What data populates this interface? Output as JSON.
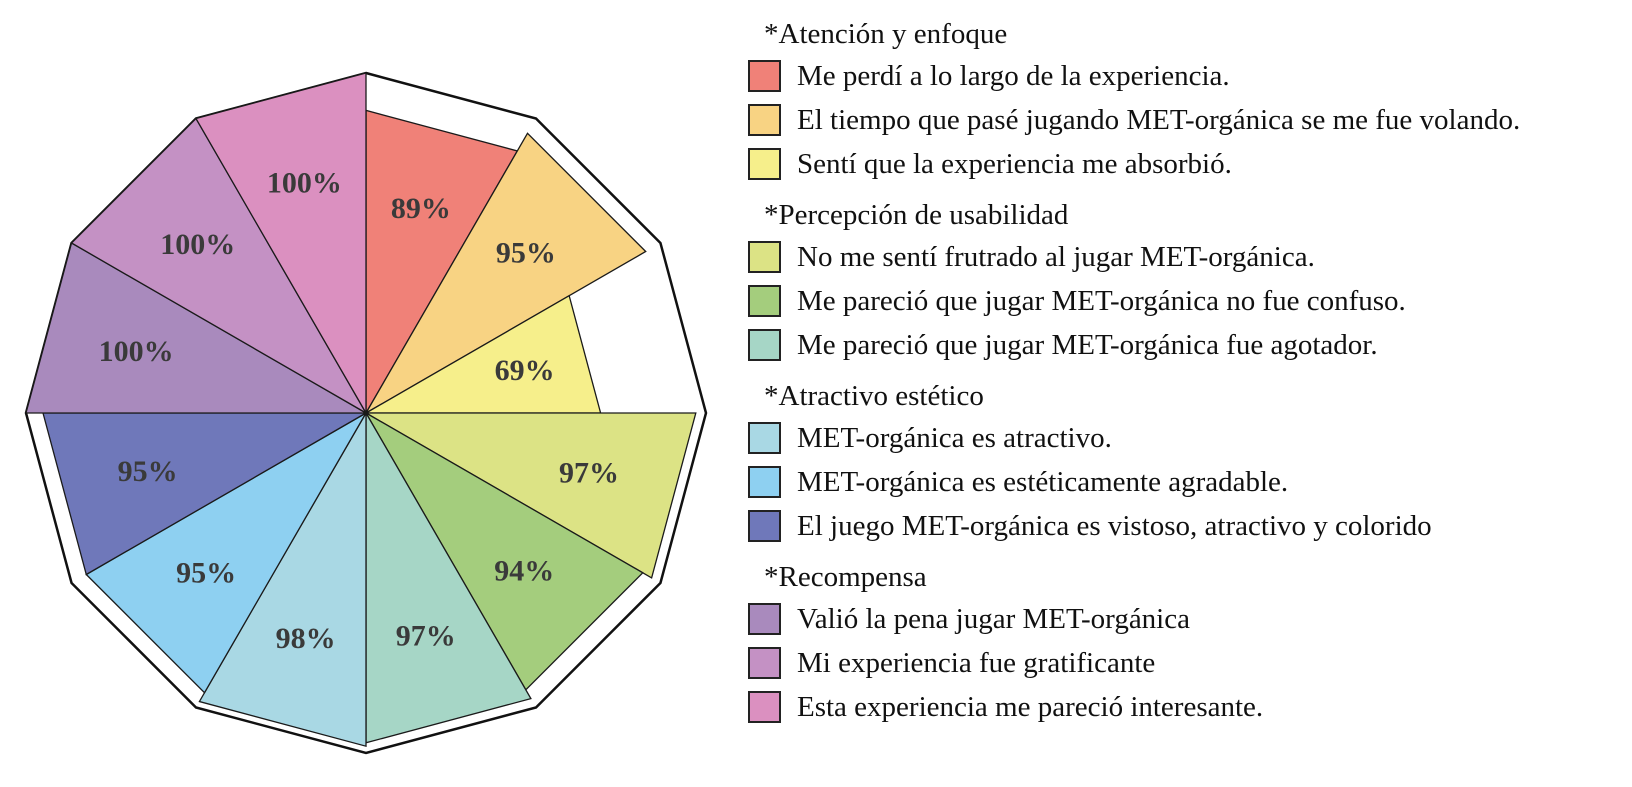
{
  "chart_data": {
    "type": "polar-area",
    "max_value": 100,
    "slices": [
      {
        "value": 89,
        "label": "89%",
        "color": "#f08178"
      },
      {
        "value": 95,
        "label": "95%",
        "color": "#f8d383"
      },
      {
        "value": 69,
        "label": "69%",
        "color": "#f6ef8b"
      },
      {
        "value": 97,
        "label": "97%",
        "color": "#dce385"
      },
      {
        "value": 94,
        "label": "94%",
        "color": "#a4cd7d"
      },
      {
        "value": 97,
        "label": "97%",
        "color": "#a6d6c6"
      },
      {
        "value": 98,
        "label": "98%",
        "color": "#a9d8e4"
      },
      {
        "value": 95,
        "label": "95%",
        "color": "#8ed0f1"
      },
      {
        "value": 95,
        "label": "95%",
        "color": "#6f78ba"
      },
      {
        "value": 100,
        "label": "100%",
        "color": "#a98abd"
      },
      {
        "value": 100,
        "label": "100%",
        "color": "#c491c4"
      },
      {
        "value": 100,
        "label": "100%",
        "color": "#db90c0"
      }
    ]
  },
  "legend": {
    "groups": [
      {
        "title": "*Atención y enfoque",
        "items": [
          {
            "label": "Me perdí a lo largo de la experiencia.",
            "color": "#f08178"
          },
          {
            "label": "El tiempo que pasé jugando MET-orgánica se me fue volando.",
            "color": "#f8d383"
          },
          {
            "label": "Sentí que la experiencia me absorbió.",
            "color": "#f6ef8b"
          }
        ]
      },
      {
        "title": "*Percepción de usabilidad",
        "items": [
          {
            "label": "No me sentí frutrado al jugar MET-orgánica.",
            "color": "#dce385"
          },
          {
            "label": "Me pareció que jugar MET-orgánica no fue confuso.",
            "color": "#a4cd7d"
          },
          {
            "label": "Me pareció que jugar MET-orgánica fue agotador.",
            "color": "#a6d6c6"
          }
        ]
      },
      {
        "title": "*Atractivo estético",
        "items": [
          {
            "label": "MET-orgánica es atractivo.",
            "color": "#a9d8e4"
          },
          {
            "label": "MET-orgánica es estéticamente agradable.",
            "color": "#8ed0f1"
          },
          {
            "label": "El juego MET-orgánica es vistoso, atractivo y colorido",
            "color": "#6f78ba"
          }
        ]
      },
      {
        "title": "*Recompensa",
        "items": [
          {
            "label": "Valió la pena jugar MET-orgánica",
            "color": "#a98abd"
          },
          {
            "label": "Mi experiencia fue gratificante",
            "color": "#c491c4"
          },
          {
            "label": "Esta experiencia me pareció interesante.",
            "color": "#db90c0"
          }
        ]
      }
    ]
  }
}
